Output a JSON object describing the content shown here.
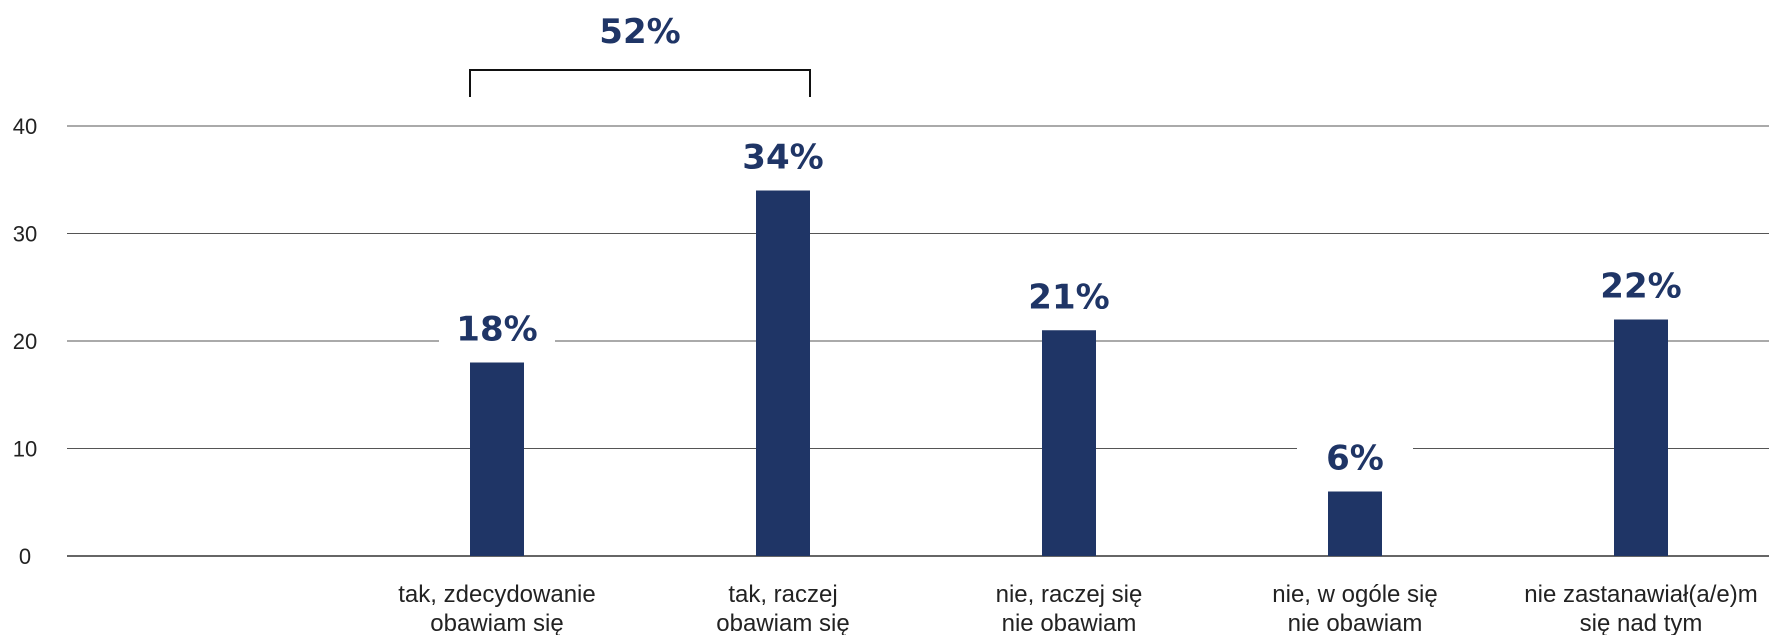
{
  "chart_data": {
    "type": "bar",
    "title": "",
    "xlabel": "",
    "ylabel": "",
    "ylim": [
      0,
      40
    ],
    "yticks": [
      0,
      10,
      20,
      30,
      40
    ],
    "grid": true,
    "categories": [
      [
        "tak, zdecydowanie",
        "obawiam się"
      ],
      [
        "tak, raczej",
        "obawiam się"
      ],
      [
        "nie, raczej się",
        "nie obawiam"
      ],
      [
        "nie, w ogóle się",
        "nie obawiam"
      ],
      [
        "nie zastanawiał(a/e)m",
        "się nad tym"
      ]
    ],
    "values": [
      18,
      34,
      21,
      6,
      22
    ],
    "value_labels": [
      "18%",
      "34%",
      "21%",
      "6%",
      "22%"
    ],
    "annotations": [
      {
        "label": "52%",
        "spans_categories": [
          0,
          1
        ]
      }
    ],
    "colors": {
      "bar": "#1f3566",
      "label": "#1f3566",
      "grid": "#555555",
      "bracket": "#111111"
    }
  }
}
